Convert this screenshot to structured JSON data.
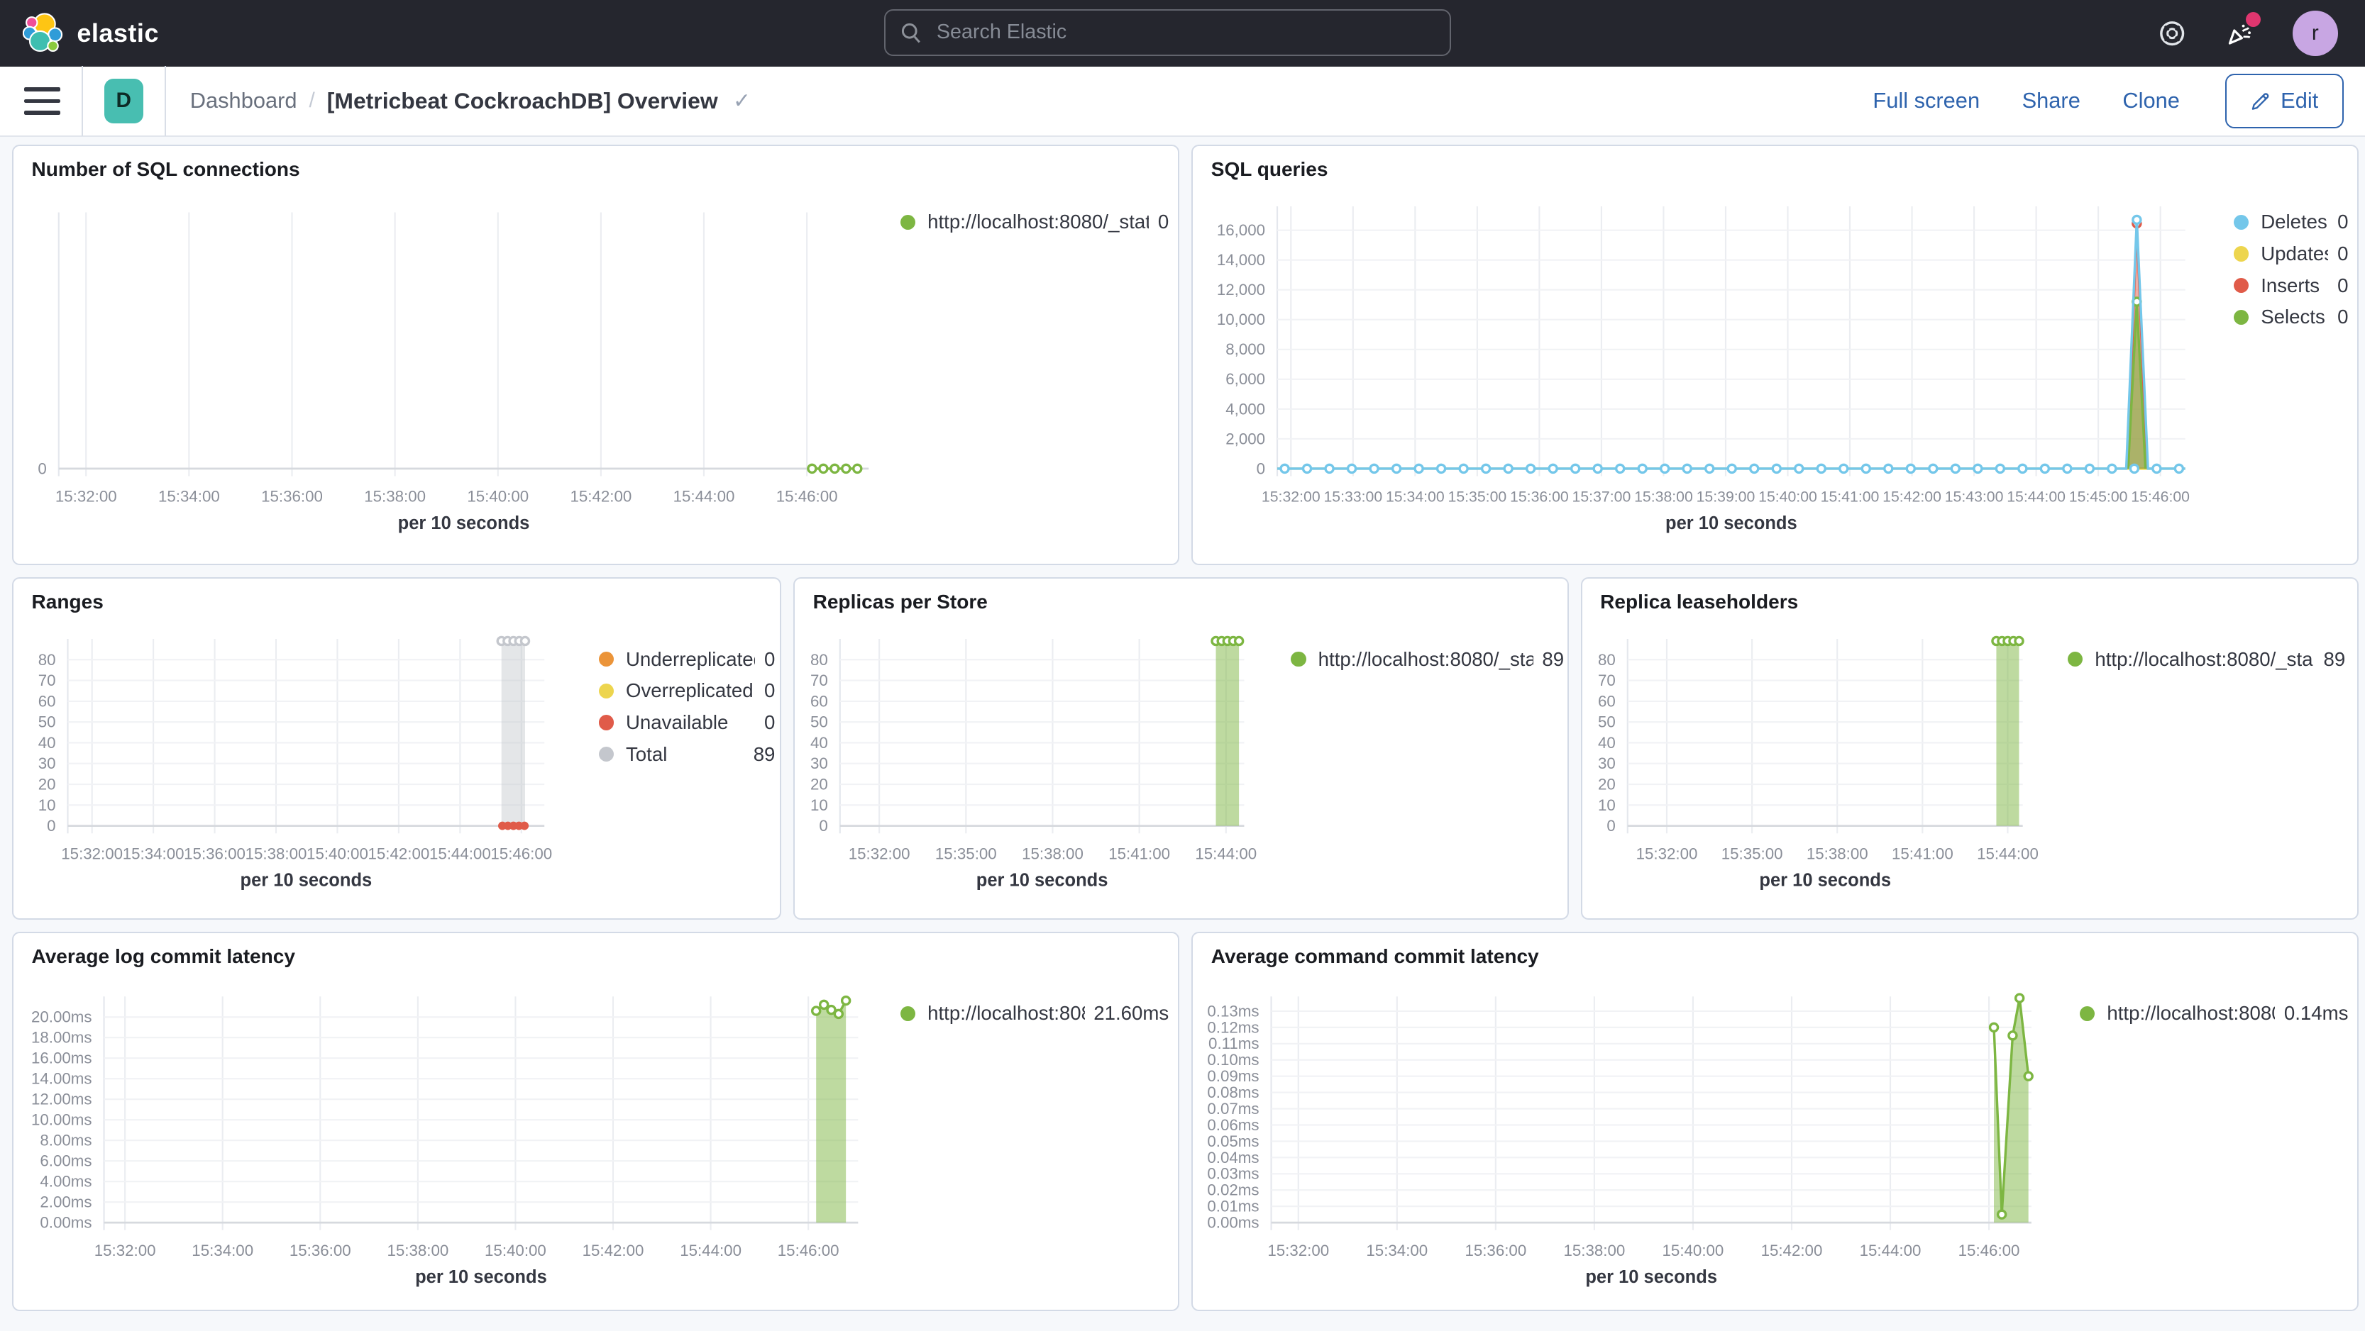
{
  "topbar": {
    "brand": "elastic",
    "search_placeholder": "Search Elastic",
    "user_initial": "r",
    "avatar_color": "#C8A6E3",
    "news_badge_color": "#E0366F"
  },
  "navbar": {
    "space_initial": "D",
    "space_color": "#48BEB1",
    "breadcrumb_parent": "Dashboard",
    "breadcrumb_sep": "/",
    "title": "[Metricbeat CockroachDB] Overview",
    "title_check": "✓",
    "link_color": "#2E63AD",
    "actions": {
      "full_screen": "Full screen",
      "share": "Share",
      "clone": "Clone",
      "edit": "Edit"
    }
  },
  "panels": [
    {
      "title": "Number of SQL connections"
    },
    {
      "title": "SQL queries"
    },
    {
      "title": "Ranges"
    },
    {
      "title": "Replicas per Store"
    },
    {
      "title": "Replica leaseholders"
    },
    {
      "title": "Average log commit latency"
    },
    {
      "title": "Average command commit latency"
    }
  ],
  "chart_data": [
    {
      "id": "sql-connections",
      "type": "line",
      "title": "Number of SQL connections",
      "xlabel": "per 10 seconds",
      "x_domain": [
        -0.53,
        15.2
      ],
      "y_max": 1,
      "x_ticks": [
        {
          "m": 0,
          "label": "15:32:00"
        },
        {
          "m": 2,
          "label": "15:34:00"
        },
        {
          "m": 4,
          "label": "15:36:00"
        },
        {
          "m": 6,
          "label": "15:38:00"
        },
        {
          "m": 8,
          "label": "15:40:00"
        },
        {
          "m": 10,
          "label": "15:42:00"
        },
        {
          "m": 12,
          "label": "15:44:00"
        },
        {
          "m": 14,
          "label": "15:46:00"
        }
      ],
      "y_ticks": [
        {
          "v": 0,
          "label": "0"
        }
      ],
      "legend": [
        {
          "label": "http://localhost:8080/_stat...",
          "value": "0",
          "color": "#7DB642"
        }
      ],
      "series": [
        {
          "name": "http://localhost:8080/_stat...",
          "color": "#7DB642",
          "kind": "line",
          "points": [
            [
              14.1,
              0
            ],
            [
              14.32,
              0
            ],
            [
              14.54,
              0
            ],
            [
              14.76,
              0
            ],
            [
              14.98,
              0
            ]
          ],
          "markers": "all"
        }
      ]
    },
    {
      "id": "sql-queries",
      "type": "line",
      "title": "SQL queries",
      "xlabel": "per 10 seconds",
      "x_domain": [
        -0.22,
        14.4
      ],
      "y_max": 17600,
      "x_ticks": [
        {
          "m": 0,
          "label": "15:32:00"
        },
        {
          "m": 1,
          "label": "15:33:00"
        },
        {
          "m": 2,
          "label": "15:34:00"
        },
        {
          "m": 3,
          "label": "15:35:00"
        },
        {
          "m": 4,
          "label": "15:36:00"
        },
        {
          "m": 5,
          "label": "15:37:00"
        },
        {
          "m": 6,
          "label": "15:38:00"
        },
        {
          "m": 7,
          "label": "15:39:00"
        },
        {
          "m": 8,
          "label": "15:40:00"
        },
        {
          "m": 9,
          "label": "15:41:00"
        },
        {
          "m": 10,
          "label": "15:42:00"
        },
        {
          "m": 11,
          "label": "15:43:00"
        },
        {
          "m": 12,
          "label": "15:44:00"
        },
        {
          "m": 13,
          "label": "15:45:00"
        },
        {
          "m": 14,
          "label": "15:46:00"
        }
      ],
      "y_ticks": [
        {
          "v": 0,
          "label": "0"
        },
        {
          "v": 2000,
          "label": "2,000"
        },
        {
          "v": 4000,
          "label": "4,000"
        },
        {
          "v": 6000,
          "label": "6,000"
        },
        {
          "v": 8000,
          "label": "8,000"
        },
        {
          "v": 10000,
          "label": "10,000"
        },
        {
          "v": 12000,
          "label": "12,000"
        },
        {
          "v": 14000,
          "label": "14,000"
        },
        {
          "v": 16000,
          "label": "16,000"
        }
      ],
      "legend": [
        {
          "label": "Deletes",
          "value": "0",
          "color": "#74C7EA"
        },
        {
          "label": "Updates",
          "value": "0",
          "color": "#EDD54E"
        },
        {
          "label": "Inserts",
          "value": "0",
          "color": "#E05B49"
        },
        {
          "label": "Selects",
          "value": "0",
          "color": "#7DB642"
        }
      ],
      "series": [
        {
          "name": "Updates",
          "color": "#EDD54E",
          "kind": "line",
          "points": [
            [
              -0.22,
              0
            ],
            [
              14.4,
              0
            ]
          ]
        },
        {
          "name": "Inserts",
          "color": "#E05B49",
          "kind": "area",
          "fill_opacity": 0.5,
          "points": [
            [
              13.47,
              0
            ],
            [
              13.62,
              16450
            ],
            [
              13.78,
              0
            ]
          ],
          "marker_points": [
            [
              13.62,
              16450
            ]
          ]
        },
        {
          "name": "Selects",
          "color": "#7DB642",
          "kind": "area",
          "fill_opacity": 0.6,
          "points": [
            [
              13.48,
              0
            ],
            [
              13.62,
              11200
            ],
            [
              13.76,
              0
            ]
          ],
          "marker_points": [
            [
              13.62,
              11200
            ]
          ]
        },
        {
          "name": "Deletes",
          "color": "#74C7EA",
          "kind": "line",
          "points": [
            [
              -0.22,
              0
            ],
            [
              13.45,
              0
            ],
            [
              13.62,
              16700
            ],
            [
              13.8,
              0
            ],
            [
              14.4,
              0
            ]
          ],
          "marker_step": {
            "from": -0.1,
            "to": 14.35,
            "step": 0.36,
            "v": 0
          },
          "marker_points": [
            [
              13.62,
              16700
            ]
          ]
        }
      ]
    },
    {
      "id": "ranges",
      "type": "area",
      "title": "Ranges",
      "xlabel": "per 10 seconds",
      "x_domain": [
        -0.79,
        14.75
      ],
      "y_max": 90,
      "x_ticks": [
        {
          "m": 0,
          "label": "15:32:00"
        },
        {
          "m": 2,
          "label": "15:34:00"
        },
        {
          "m": 4,
          "label": "15:36:00"
        },
        {
          "m": 6,
          "label": "15:38:00"
        },
        {
          "m": 8,
          "label": "15:40:00"
        },
        {
          "m": 10,
          "label": "15:42:00"
        },
        {
          "m": 12,
          "label": "15:44:00"
        },
        {
          "m": 14,
          "label": "15:46:00"
        }
      ],
      "y_ticks": [
        {
          "v": 0,
          "label": "0"
        },
        {
          "v": 10,
          "label": "10"
        },
        {
          "v": 20,
          "label": "20"
        },
        {
          "v": 30,
          "label": "30"
        },
        {
          "v": 40,
          "label": "40"
        },
        {
          "v": 50,
          "label": "50"
        },
        {
          "v": 60,
          "label": "60"
        },
        {
          "v": 70,
          "label": "70"
        },
        {
          "v": 80,
          "label": "80"
        }
      ],
      "legend": [
        {
          "label": "Underreplicated",
          "value": "0",
          "color": "#EB9439"
        },
        {
          "label": "Overreplicated",
          "value": "0",
          "color": "#EDD54E"
        },
        {
          "label": "Unavailable",
          "value": "0",
          "color": "#E05B49"
        },
        {
          "label": "Total",
          "value": "89",
          "color": "#C4C7CD"
        }
      ],
      "series": [
        {
          "name": "Total",
          "color": "#C4C7CD",
          "kind": "area",
          "fill_opacity": 0.45,
          "points": [
            [
              13.35,
              89
            ],
            [
              13.55,
              89
            ],
            [
              13.74,
              89
            ],
            [
              13.93,
              89
            ],
            [
              14.12,
              89
            ]
          ],
          "markers": "all"
        },
        {
          "name": "Unavailable",
          "color": "#E05B49",
          "kind": "points",
          "points": [
            [
              13.38,
              0
            ],
            [
              13.56,
              0
            ],
            [
              13.74,
              0
            ],
            [
              13.92,
              0
            ],
            [
              14.1,
              0
            ]
          ]
        }
      ]
    },
    {
      "id": "replicas-per-store",
      "type": "bar",
      "title": "Replicas per Store",
      "xlabel": "per 10 seconds",
      "x_domain": [
        -1.36,
        12.63
      ],
      "y_max": 90,
      "x_ticks": [
        {
          "m": 0,
          "label": "15:32:00"
        },
        {
          "m": 3,
          "label": "15:35:00"
        },
        {
          "m": 6,
          "label": "15:38:00"
        },
        {
          "m": 9,
          "label": "15:41:00"
        },
        {
          "m": 12,
          "label": "15:44:00"
        }
      ],
      "y_ticks": [
        {
          "v": 0,
          "label": "0"
        },
        {
          "v": 10,
          "label": "10"
        },
        {
          "v": 20,
          "label": "20"
        },
        {
          "v": 30,
          "label": "30"
        },
        {
          "v": 40,
          "label": "40"
        },
        {
          "v": 50,
          "label": "50"
        },
        {
          "v": 60,
          "label": "60"
        },
        {
          "v": 70,
          "label": "70"
        },
        {
          "v": 80,
          "label": "80"
        }
      ],
      "legend": [
        {
          "label": "http://localhost:8080/_sta...",
          "value": "89",
          "color": "#7DB642"
        }
      ],
      "series": [
        {
          "name": "http://localhost:8080/_sta...",
          "color": "#7DB642",
          "kind": "area",
          "fill_opacity": 0.5,
          "points": [
            [
              11.65,
              89
            ],
            [
              11.85,
              89
            ],
            [
              12.05,
              89
            ],
            [
              12.25,
              89
            ],
            [
              12.45,
              89
            ]
          ],
          "markers": "all"
        }
      ]
    },
    {
      "id": "replica-leaseholders",
      "type": "bar",
      "title": "Replica leaseholders",
      "xlabel": "per 10 seconds",
      "x_domain": [
        -1.38,
        12.53
      ],
      "y_max": 90,
      "x_ticks": [
        {
          "m": 0,
          "label": "15:32:00"
        },
        {
          "m": 3,
          "label": "15:35:00"
        },
        {
          "m": 6,
          "label": "15:38:00"
        },
        {
          "m": 9,
          "label": "15:41:00"
        },
        {
          "m": 12,
          "label": "15:44:00"
        }
      ],
      "y_ticks": [
        {
          "v": 0,
          "label": "0"
        },
        {
          "v": 10,
          "label": "10"
        },
        {
          "v": 20,
          "label": "20"
        },
        {
          "v": 30,
          "label": "30"
        },
        {
          "v": 40,
          "label": "40"
        },
        {
          "v": 50,
          "label": "50"
        },
        {
          "v": 60,
          "label": "60"
        },
        {
          "v": 70,
          "label": "70"
        },
        {
          "v": 80,
          "label": "80"
        }
      ],
      "legend": [
        {
          "label": "http://localhost:8080/_sta...",
          "value": "89",
          "color": "#7DB642"
        }
      ],
      "series": [
        {
          "name": "http://localhost:8080/_sta...",
          "color": "#7DB642",
          "kind": "area",
          "fill_opacity": 0.5,
          "points": [
            [
              11.6,
              89
            ],
            [
              11.8,
              89
            ],
            [
              12.0,
              89
            ],
            [
              12.2,
              89
            ],
            [
              12.4,
              89
            ]
          ],
          "markers": "all"
        }
      ]
    },
    {
      "id": "avg-log-commit-latency",
      "type": "area",
      "title": "Average log commit latency",
      "xlabel": "per 10 seconds",
      "x_domain": [
        -0.43,
        15.02
      ],
      "y_max": 22,
      "x_ticks": [
        {
          "m": 0,
          "label": "15:32:00"
        },
        {
          "m": 2,
          "label": "15:34:00"
        },
        {
          "m": 4,
          "label": "15:36:00"
        },
        {
          "m": 6,
          "label": "15:38:00"
        },
        {
          "m": 8,
          "label": "15:40:00"
        },
        {
          "m": 10,
          "label": "15:42:00"
        },
        {
          "m": 12,
          "label": "15:44:00"
        },
        {
          "m": 14,
          "label": "15:46:00"
        }
      ],
      "y_ticks": [
        {
          "v": 0,
          "label": "0.00ms"
        },
        {
          "v": 2,
          "label": "2.00ms"
        },
        {
          "v": 4,
          "label": "4.00ms"
        },
        {
          "v": 6,
          "label": "6.00ms"
        },
        {
          "v": 8,
          "label": "8.00ms"
        },
        {
          "v": 10,
          "label": "10.00ms"
        },
        {
          "v": 12,
          "label": "12.00ms"
        },
        {
          "v": 14,
          "label": "14.00ms"
        },
        {
          "v": 16,
          "label": "16.00ms"
        },
        {
          "v": 18,
          "label": "18.00ms"
        },
        {
          "v": 20,
          "label": "20.00ms"
        }
      ],
      "legend": [
        {
          "label": "http://localhost:808...",
          "value": "21.60ms",
          "color": "#7DB642"
        }
      ],
      "series": [
        {
          "name": "http://localhost:808...",
          "color": "#7DB642",
          "kind": "area",
          "fill_opacity": 0.5,
          "points": [
            [
              14.16,
              20.6
            ],
            [
              14.32,
              21.2
            ],
            [
              14.47,
              20.7
            ],
            [
              14.62,
              20.3
            ],
            [
              14.77,
              21.6
            ]
          ],
          "markers": "all"
        }
      ]
    },
    {
      "id": "avg-command-commit-latency",
      "type": "area",
      "title": "Average command commit latency",
      "xlabel": "per 10 seconds",
      "x_domain": [
        -0.55,
        14.86
      ],
      "y_max": 0.139,
      "x_ticks": [
        {
          "m": 0,
          "label": "15:32:00"
        },
        {
          "m": 2,
          "label": "15:34:00"
        },
        {
          "m": 4,
          "label": "15:36:00"
        },
        {
          "m": 6,
          "label": "15:38:00"
        },
        {
          "m": 8,
          "label": "15:40:00"
        },
        {
          "m": 10,
          "label": "15:42:00"
        },
        {
          "m": 12,
          "label": "15:44:00"
        },
        {
          "m": 14,
          "label": "15:46:00"
        }
      ],
      "y_ticks": [
        {
          "v": 0,
          "label": "0.00ms"
        },
        {
          "v": 0.01,
          "label": "0.01ms"
        },
        {
          "v": 0.02,
          "label": "0.02ms"
        },
        {
          "v": 0.03,
          "label": "0.03ms"
        },
        {
          "v": 0.04,
          "label": "0.04ms"
        },
        {
          "v": 0.05,
          "label": "0.05ms"
        },
        {
          "v": 0.06,
          "label": "0.06ms"
        },
        {
          "v": 0.07,
          "label": "0.07ms"
        },
        {
          "v": 0.08,
          "label": "0.08ms"
        },
        {
          "v": 0.09,
          "label": "0.09ms"
        },
        {
          "v": 0.1,
          "label": "0.10ms"
        },
        {
          "v": 0.11,
          "label": "0.11ms"
        },
        {
          "v": 0.12,
          "label": "0.12ms"
        },
        {
          "v": 0.13,
          "label": "0.13ms"
        }
      ],
      "legend": [
        {
          "label": "http://localhost:8080...",
          "value": "0.14ms",
          "color": "#7DB642"
        }
      ],
      "series": [
        {
          "name": "http://localhost:8080...",
          "color": "#7DB642",
          "kind": "area",
          "fill_opacity": 0.5,
          "points": [
            [
              14.1,
              0.12
            ],
            [
              14.26,
              0.005
            ],
            [
              14.48,
              0.115
            ],
            [
              14.62,
              0.138
            ],
            [
              14.8,
              0.09
            ]
          ],
          "markers": "all"
        }
      ]
    }
  ]
}
